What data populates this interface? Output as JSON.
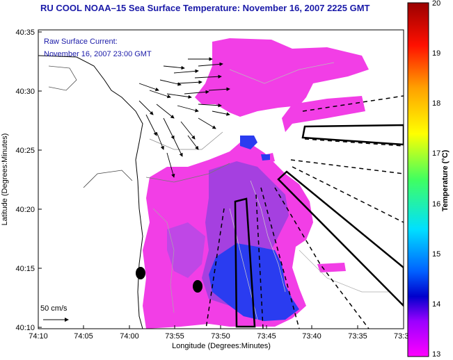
{
  "title": "RU COOL  NOAA–15  Sea Surface Temperature:  November 16, 2007 2225 GMT",
  "current_label": {
    "line1": "Raw Surface Current:",
    "line2": "November 16, 2007 23:00 GMT"
  },
  "scale_label": "50 cm/s",
  "x_axis": {
    "label": "Longitude (Degrees:Minutes)",
    "ticks": [
      "74:10",
      "74:05",
      "74:00",
      "73:55",
      "73:50",
      "73:45",
      "73:40",
      "73:35",
      "73:3"
    ]
  },
  "y_axis": {
    "label": "Latitude (Degrees:Minutes)",
    "ticks": [
      "40:35",
      "40:30",
      "40:25",
      "40:20",
      "40:15",
      "40:10"
    ]
  },
  "colorbar": {
    "label": "Temperature (°C)",
    "ticks": [
      "20",
      "19",
      "18",
      "17",
      "16",
      "15",
      "14",
      "13"
    ],
    "min": 13,
    "max": 20,
    "colors": [
      "#a00000",
      "#ff0000",
      "#ff8800",
      "#ffff00",
      "#60ff60",
      "#00ffff",
      "#0060ff",
      "#0000cc",
      "#a000ff",
      "#ff00ff"
    ]
  },
  "sst_colors": {
    "magenta": "#f23ee6",
    "purple": "#a540e0",
    "blue": "#2a3cf0"
  }
}
